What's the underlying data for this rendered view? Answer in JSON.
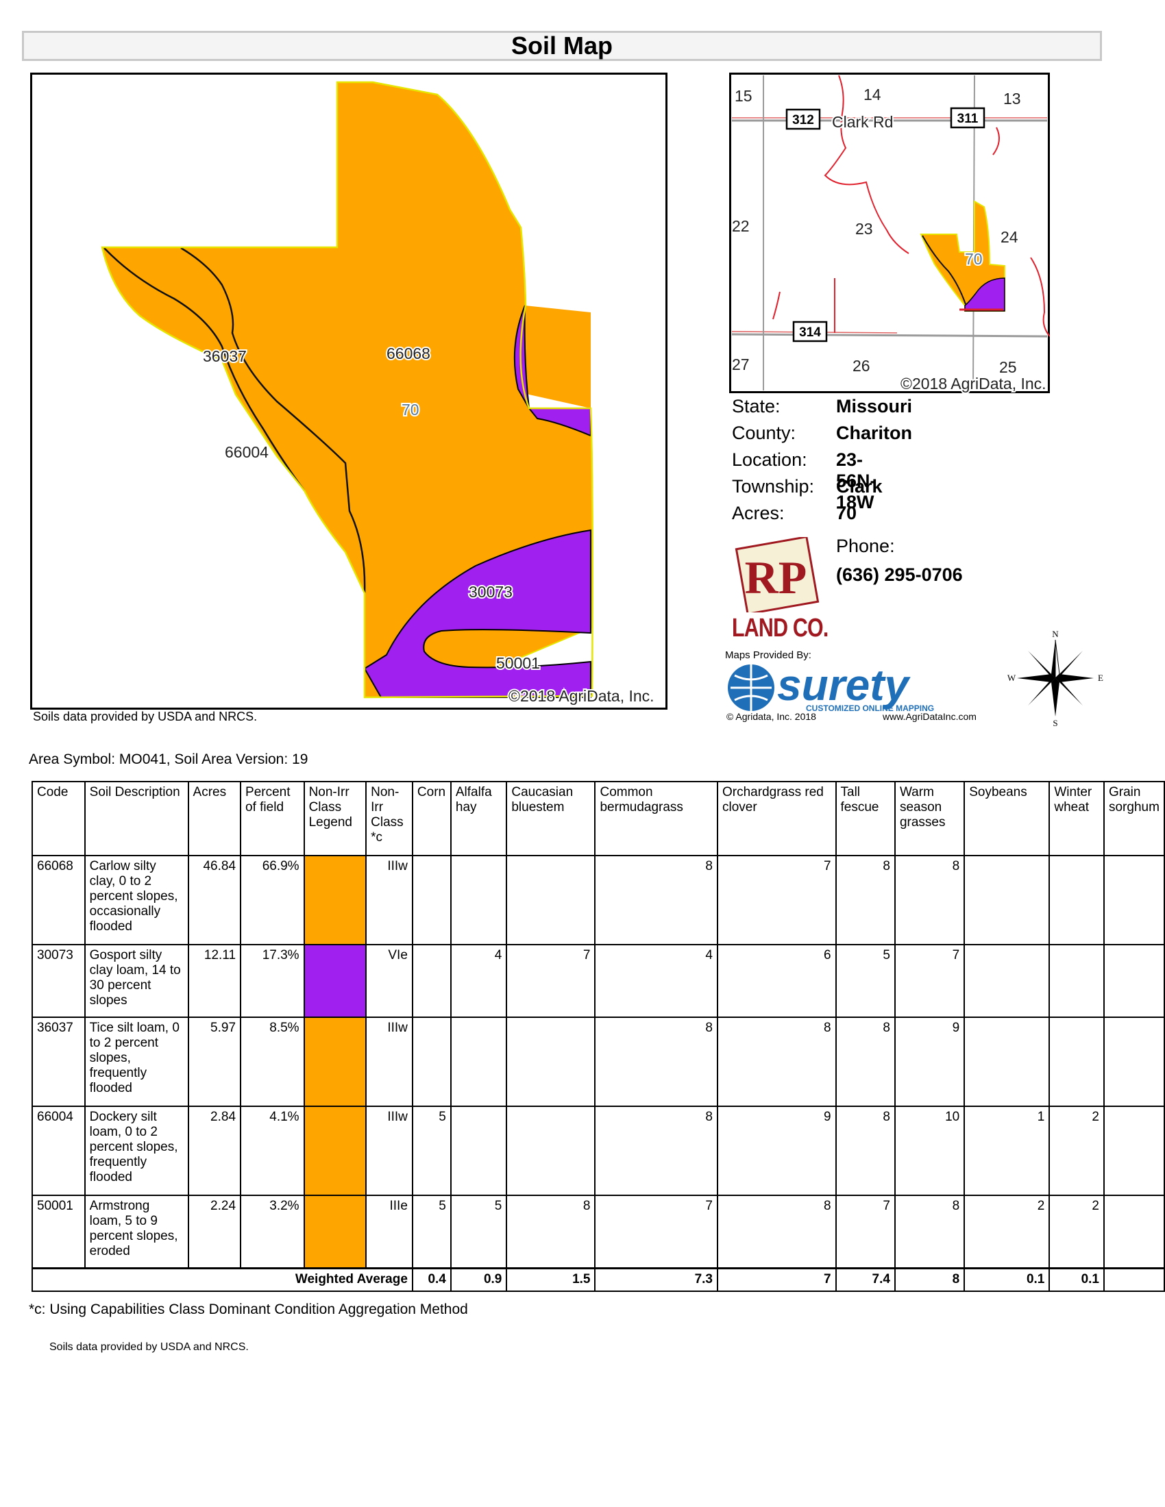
{
  "title": "Soil Map",
  "main_map": {
    "labels": [
      "36037",
      "66068",
      "66004",
      "30073",
      "50001"
    ],
    "field_label": "70",
    "copyright": "©2018 AgriData, Inc.",
    "colors": {
      "orange": "#ffa500",
      "purple": "#a020f0",
      "boundary": "#e6e600"
    }
  },
  "soils_credit": "Soils data provided by USDA and NRCS.",
  "location_map": {
    "sections": [
      "15",
      "14",
      "13",
      "22",
      "23",
      "24",
      "27",
      "26",
      "25"
    ],
    "road_shields": [
      "312",
      "311",
      "314"
    ],
    "road_name": "Clark Rd",
    "field_label": "70",
    "copyright": "©2018 AgriData, Inc."
  },
  "info": {
    "rows": [
      {
        "key": "State:",
        "value": "Missouri"
      },
      {
        "key": "County:",
        "value": "Chariton"
      },
      {
        "key": "Location:",
        "value": "23-56N-18W"
      },
      {
        "key": "Township:",
        "value": "Clark"
      },
      {
        "key": "Acres:",
        "value": "70"
      }
    ],
    "phone_label": "Phone:",
    "phone": "(636) 295-0706"
  },
  "brand": {
    "logo_text": "RP",
    "name": "LAND CO.",
    "maps_provided": "Maps Provided By:",
    "surety": "surety",
    "surety_tag": "CUSTOMIZED ONLINE MAPPING",
    "agridata_left": "© Agridata, Inc. 2018",
    "agridata_right": "www.AgriDataInc.com"
  },
  "compass": {
    "n": "N",
    "s": "S",
    "e": "E",
    "w": "W"
  },
  "area_symbol": "Area Symbol: MO041, Soil Area Version: 19",
  "table": {
    "headers": [
      "Code",
      "Soil Description",
      "Acres",
      "Percent of field",
      "Non-Irr Class Legend",
      "Non-Irr Class *c",
      "Corn",
      "Alfalfa hay",
      "Caucasian bluestem",
      "Common bermudagrass",
      "Orchardgrass red clover",
      "Tall fescue",
      "Warm season grasses",
      "Soybeans",
      "Winter wheat",
      "Grain sorghum"
    ],
    "rows": [
      {
        "code": "66068",
        "desc": "Carlow silty clay, 0 to 2 percent slopes, occasionally flooded",
        "acres": "46.84",
        "pct": "66.9%",
        "legend": "#ffa500",
        "cls": "IIIw",
        "corn": "",
        "alfalfa": "",
        "caucasian": "",
        "bermuda": "8",
        "orchard": "7",
        "fescue": "8",
        "warm": "8",
        "soy": "",
        "wheat": "",
        "sorghum": ""
      },
      {
        "code": "30073",
        "desc": "Gosport silty clay loam, 14 to 30 percent slopes",
        "acres": "12.11",
        "pct": "17.3%",
        "legend": "#a020f0",
        "cls": "VIe",
        "corn": "",
        "alfalfa": "4",
        "caucasian": "7",
        "bermuda": "4",
        "orchard": "6",
        "fescue": "5",
        "warm": "7",
        "soy": "",
        "wheat": "",
        "sorghum": ""
      },
      {
        "code": "36037",
        "desc": "Tice silt loam, 0 to 2 percent slopes, frequently flooded",
        "acres": "5.97",
        "pct": "8.5%",
        "legend": "#ffa500",
        "cls": "IIIw",
        "corn": "",
        "alfalfa": "",
        "caucasian": "",
        "bermuda": "8",
        "orchard": "8",
        "fescue": "8",
        "warm": "9",
        "soy": "",
        "wheat": "",
        "sorghum": ""
      },
      {
        "code": "66004",
        "desc": "Dockery silt loam, 0 to 2 percent slopes, frequently flooded",
        "acres": "2.84",
        "pct": "4.1%",
        "legend": "#ffa500",
        "cls": "IIIw",
        "corn": "5",
        "alfalfa": "",
        "caucasian": "",
        "bermuda": "8",
        "orchard": "9",
        "fescue": "8",
        "warm": "10",
        "soy": "1",
        "wheat": "2",
        "sorghum": ""
      },
      {
        "code": "50001",
        "desc": "Armstrong loam, 5 to 9 percent slopes, eroded",
        "acres": "2.24",
        "pct": "3.2%",
        "legend": "#ffa500",
        "cls": "IIIe",
        "corn": "5",
        "alfalfa": "5",
        "caucasian": "8",
        "bermuda": "7",
        "orchard": "8",
        "fescue": "7",
        "warm": "8",
        "soy": "2",
        "wheat": "2",
        "sorghum": ""
      }
    ],
    "weighted_label": "Weighted Average",
    "weighted": {
      "corn": "0.4",
      "alfalfa": "0.9",
      "caucasian": "1.5",
      "bermuda": "7.3",
      "orchard": "7",
      "fescue": "7.4",
      "warm": "8",
      "soy": "0.1",
      "wheat": "0.1",
      "sorghum": ""
    }
  },
  "footnote": "*c:  Using Capabilities Class Dominant Condition Aggregation Method"
}
